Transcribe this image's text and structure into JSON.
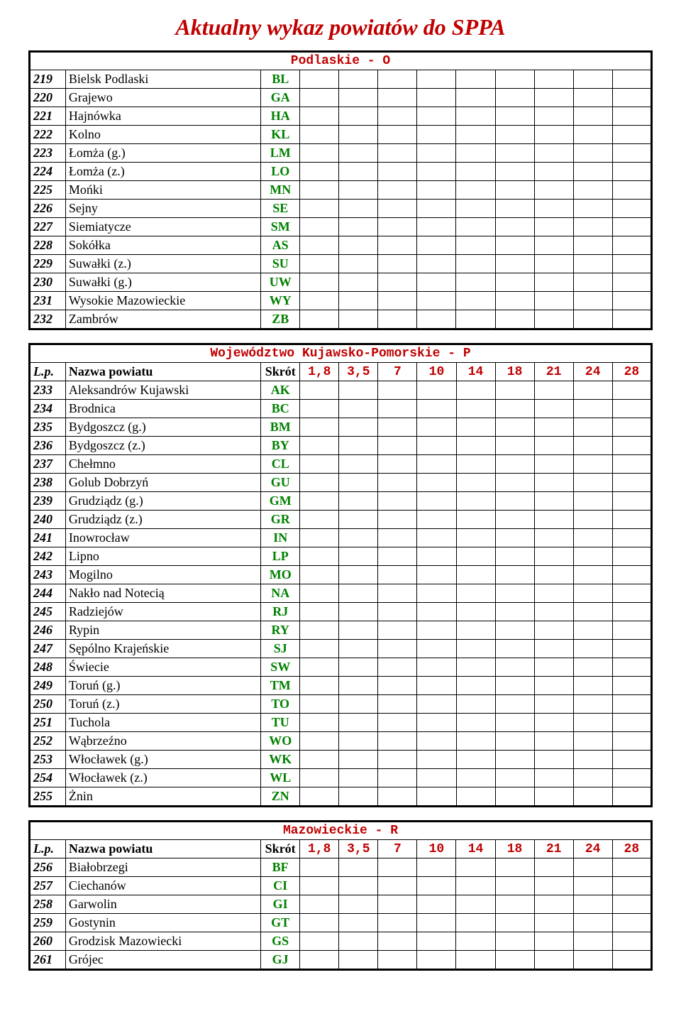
{
  "title": "Aktualny wykaz powiatów do SPPA",
  "bands": [
    "1,8",
    "3,5",
    "7",
    "10",
    "14",
    "18",
    "21",
    "24",
    "28"
  ],
  "header": {
    "lp": "L.p.",
    "name": "Nazwa powiatu",
    "abbr": "Skrót"
  },
  "section1": {
    "title": "Podlaskie - O",
    "rows": [
      {
        "n": "219",
        "name": "Bielsk Podlaski",
        "abbr": "BL"
      },
      {
        "n": "220",
        "name": "Grajewo",
        "abbr": "GA"
      },
      {
        "n": "221",
        "name": "Hajnówka",
        "abbr": "HA"
      },
      {
        "n": "222",
        "name": "Kolno",
        "abbr": "KL"
      },
      {
        "n": "223",
        "name": "Łomża (g.)",
        "abbr": "LM"
      },
      {
        "n": "224",
        "name": "Łomża (z.)",
        "abbr": "LO"
      },
      {
        "n": "225",
        "name": "Mońki",
        "abbr": "MN"
      },
      {
        "n": "226",
        "name": "Sejny",
        "abbr": "SE"
      },
      {
        "n": "227",
        "name": "Siemiatycze",
        "abbr": "SM"
      },
      {
        "n": "228",
        "name": "Sokółka",
        "abbr": "AS"
      },
      {
        "n": "229",
        "name": "Suwałki (z.)",
        "abbr": "SU"
      },
      {
        "n": "230",
        "name": "Suwałki (g.)",
        "abbr": "UW"
      },
      {
        "n": "231",
        "name": "Wysokie Mazowieckie",
        "abbr": "WY"
      },
      {
        "n": "232",
        "name": "Zambrów",
        "abbr": "ZB"
      }
    ]
  },
  "section2": {
    "title": "Województwo Kujawsko-Pomorskie - P",
    "rows": [
      {
        "n": "233",
        "name": "Aleksandrów Kujawski",
        "abbr": "AK"
      },
      {
        "n": "234",
        "name": "Brodnica",
        "abbr": "BC"
      },
      {
        "n": "235",
        "name": "Bydgoszcz (g.)",
        "abbr": "BM"
      },
      {
        "n": "236",
        "name": "Bydgoszcz (z.)",
        "abbr": "BY"
      },
      {
        "n": "237",
        "name": "Chełmno",
        "abbr": "CL"
      },
      {
        "n": "238",
        "name": "Golub Dobrzyń",
        "abbr": "GU"
      },
      {
        "n": "239",
        "name": "Grudziądz (g.)",
        "abbr": "GM"
      },
      {
        "n": "240",
        "name": "Grudziądz (z.)",
        "abbr": "GR"
      },
      {
        "n": "241",
        "name": "Inowrocław",
        "abbr": "IN"
      },
      {
        "n": "242",
        "name": "Lipno",
        "abbr": "LP"
      },
      {
        "n": "243",
        "name": "Mogilno",
        "abbr": "MO"
      },
      {
        "n": "244",
        "name": "Nakło nad Notecią",
        "abbr": "NA"
      },
      {
        "n": "245",
        "name": "Radziejów",
        "abbr": "RJ"
      },
      {
        "n": "246",
        "name": "Rypin",
        "abbr": "RY"
      },
      {
        "n": "247",
        "name": "Sępólno Krajeńskie",
        "abbr": "SJ"
      },
      {
        "n": "248",
        "name": "Świecie",
        "abbr": "SW"
      },
      {
        "n": "249",
        "name": "Toruń (g.)",
        "abbr": "TM"
      },
      {
        "n": "250",
        "name": "Toruń (z.)",
        "abbr": "TO"
      },
      {
        "n": "251",
        "name": "Tuchola",
        "abbr": "TU"
      },
      {
        "n": "252",
        "name": "Wąbrzeźno",
        "abbr": "WO"
      },
      {
        "n": "253",
        "name": "Włocławek (g.)",
        "abbr": "WK"
      },
      {
        "n": "254",
        "name": "Włocławek (z.)",
        "abbr": "WL"
      },
      {
        "n": "255",
        "name": "Żnin",
        "abbr": "ZN"
      }
    ]
  },
  "section3": {
    "title": "Mazowieckie - R",
    "rows": [
      {
        "n": "256",
        "name": "Białobrzegi",
        "abbr": "BF"
      },
      {
        "n": "257",
        "name": "Ciechanów",
        "abbr": "CI"
      },
      {
        "n": "258",
        "name": "Garwolin",
        "abbr": "GI"
      },
      {
        "n": "259",
        "name": "Gostynin",
        "abbr": "GT"
      },
      {
        "n": "260",
        "name": "Grodzisk Mazowiecki",
        "abbr": "GS"
      },
      {
        "n": "261",
        "name": "Grójec",
        "abbr": "GJ"
      }
    ]
  }
}
